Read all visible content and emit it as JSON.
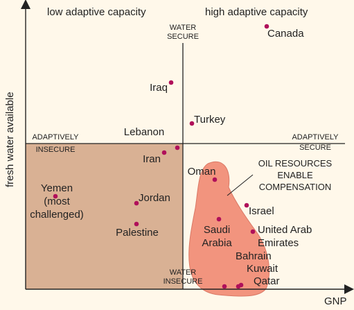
{
  "header": {
    "left": "low adaptive capacity",
    "right": "high adaptive capacity"
  },
  "axes": {
    "y_label": "fresh water available",
    "x_label": "GNP"
  },
  "quadrant_labels": {
    "water_secure": [
      "WATER",
      "SECURE"
    ],
    "water_insecure": [
      "WATER",
      "INSECURE"
    ],
    "adaptively_insecure": [
      "ADAPTIVELY",
      "INSECURE"
    ],
    "adaptively_secure": [
      "ADAPTIVELY",
      "SECURE"
    ]
  },
  "oil_note": [
    "OIL RESOURCES",
    "ENABLE",
    "COMPENSATION"
  ],
  "colors": {
    "insecure_region": "#d9b194",
    "oil_region": "#f2947e",
    "points": "#b0105a",
    "background": "#fff8ea"
  },
  "countries": [
    {
      "id": "canada",
      "label": [
        "Canada"
      ]
    },
    {
      "id": "iraq",
      "label": [
        "Iraq"
      ]
    },
    {
      "id": "turkey",
      "label": [
        "Turkey"
      ]
    },
    {
      "id": "lebanon",
      "label": [
        "Lebanon"
      ]
    },
    {
      "id": "iran",
      "label": [
        "Iran"
      ]
    },
    {
      "id": "oman",
      "label": [
        "Oman"
      ]
    },
    {
      "id": "yemen",
      "label": [
        "Yemen",
        "(most",
        "challenged)"
      ]
    },
    {
      "id": "jordan",
      "label": [
        "Jordan"
      ]
    },
    {
      "id": "israel",
      "label": [
        "Israel"
      ]
    },
    {
      "id": "saudi-arabia",
      "label": [
        "Saudi",
        "Arabia"
      ]
    },
    {
      "id": "uae",
      "label": [
        "United Arab",
        "Emirates"
      ]
    },
    {
      "id": "palestine",
      "label": [
        "Palestine"
      ]
    },
    {
      "id": "bahrain",
      "label": [
        "Bahrain"
      ]
    },
    {
      "id": "kuwait",
      "label": [
        "Kuwait"
      ]
    },
    {
      "id": "qatar",
      "label": [
        "Qatar"
      ]
    }
  ]
}
